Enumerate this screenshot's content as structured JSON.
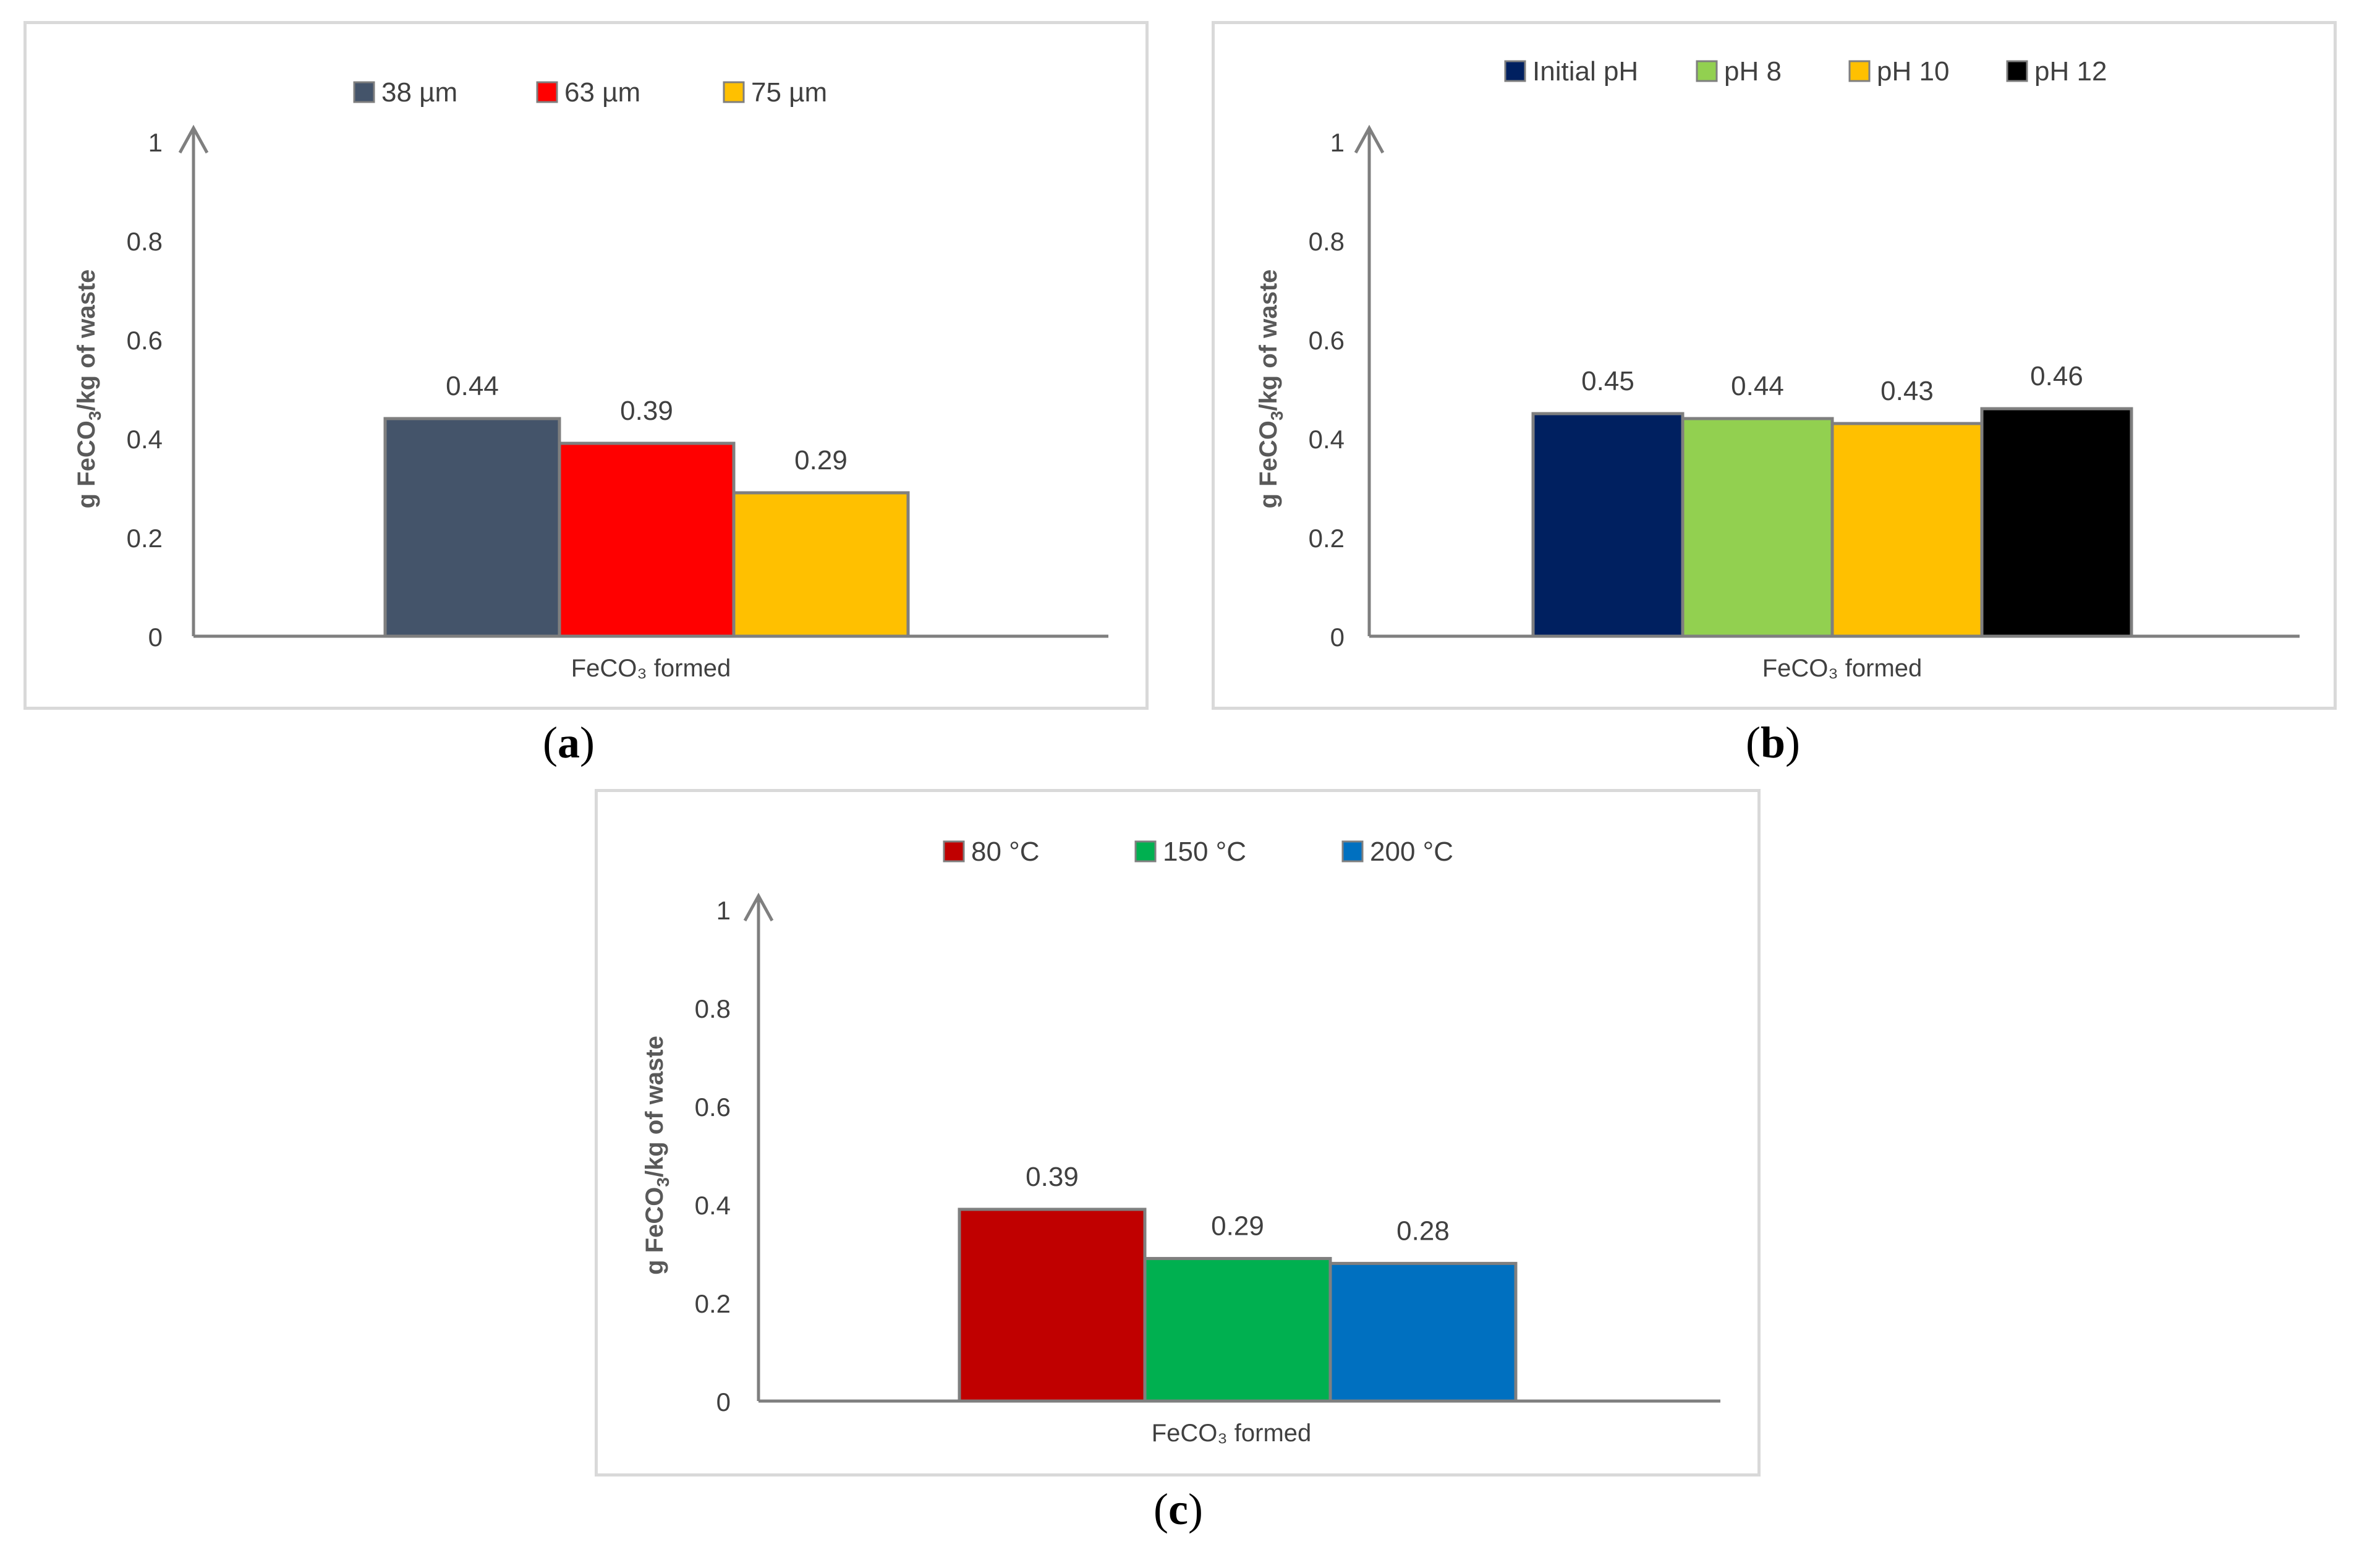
{
  "colors": {
    "axis": "#7f7f7f",
    "text": "#404040",
    "label": "#595959",
    "border": "#d9d9d9"
  },
  "chart_data": [
    {
      "id": "a",
      "type": "bar",
      "caption": "a",
      "categories": [
        "FeCO₃ formed"
      ],
      "xlabel": "FeCO₃ formed",
      "ylabel_parts": [
        "g FeCO",
        "3",
        "/kg of waste"
      ],
      "ylim": [
        0,
        1
      ],
      "yticks": [
        "0",
        "0.2",
        "0.4",
        "0.6",
        "0.8",
        "1"
      ],
      "grid": false,
      "legend_position": "top",
      "series": [
        {
          "name": "38 µm",
          "values": [
            0.44
          ],
          "label": "0.44",
          "color": "#44546a"
        },
        {
          "name": "63 µm",
          "values": [
            0.39
          ],
          "label": "0.39",
          "color": "#ff0000"
        },
        {
          "name": "75 µm",
          "values": [
            0.29
          ],
          "label": "0.29",
          "color": "#ffc000"
        }
      ]
    },
    {
      "id": "b",
      "type": "bar",
      "caption": "b",
      "categories": [
        "FeCO₃ formed"
      ],
      "xlabel": "FeCO₃ formed",
      "ylabel_parts": [
        "g FeCO",
        "3",
        "/kg  of waste"
      ],
      "ylim": [
        0,
        1
      ],
      "yticks": [
        "0",
        "0.2",
        "0.4",
        "0.6",
        "0.8",
        "1"
      ],
      "grid": false,
      "legend_position": "top",
      "series": [
        {
          "name": "Initial pH",
          "values": [
            0.45
          ],
          "label": "0.45",
          "color": "#002060"
        },
        {
          "name": "pH 8",
          "values": [
            0.44
          ],
          "label": "0.44",
          "color": "#92d050"
        },
        {
          "name": "pH 10",
          "values": [
            0.43
          ],
          "label": "0.43",
          "color": "#ffc000"
        },
        {
          "name": "pH 12",
          "values": [
            0.46
          ],
          "label": "0.46",
          "color": "#000000"
        }
      ]
    },
    {
      "id": "c",
      "type": "bar",
      "caption": "c",
      "categories": [
        "FeCO₃ formed"
      ],
      "xlabel": "FeCO₃ formed",
      "ylabel_parts": [
        "g FeCO",
        "3",
        "/kg of waste"
      ],
      "ylim": [
        0,
        1
      ],
      "yticks": [
        "0",
        "0.2",
        "0.4",
        "0.6",
        "0.8",
        "1"
      ],
      "grid": false,
      "legend_position": "top",
      "series": [
        {
          "name": "80 °C",
          "values": [
            0.39
          ],
          "label": "0.39",
          "color": "#c00000"
        },
        {
          "name": "150 °C",
          "values": [
            0.29
          ],
          "label": "0.29",
          "color": "#00b050"
        },
        {
          "name": "200 °C",
          "values": [
            0.28
          ],
          "label": "0.28",
          "color": "#0070c0"
        }
      ]
    }
  ]
}
